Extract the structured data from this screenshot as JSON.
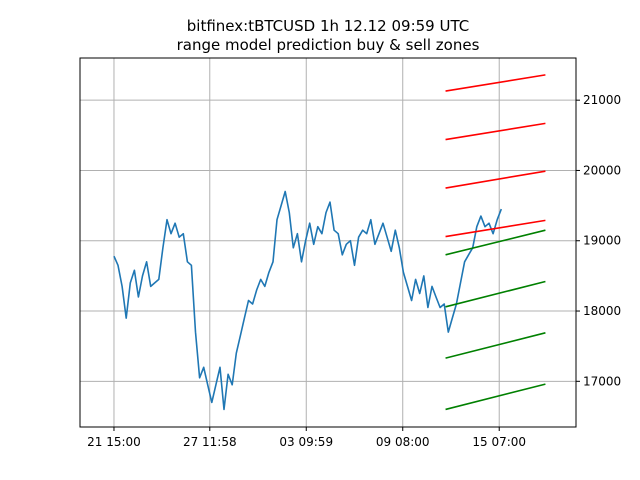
{
  "chart_data": {
    "type": "line",
    "title": [
      "bitfinex:tBTCUSD 1h 12.12 09:59 UTC",
      "range model prediction buy & sell zones"
    ],
    "xlabel": "",
    "ylabel": "",
    "x_unit": "hours",
    "x_ticks": [
      {
        "label": "21 15:00",
        "value": 0
      },
      {
        "label": "27 11:58",
        "value": 141
      },
      {
        "label": "03 09:59",
        "value": 283
      },
      {
        "label": "09 08:00",
        "value": 425
      },
      {
        "label": "15 07:00",
        "value": 567
      }
    ],
    "y_ticks": [
      17000,
      18000,
      19000,
      20000,
      21000
    ],
    "xlim": [
      -50,
      680
    ],
    "ylim": [
      16350,
      21600
    ],
    "y_axis_side": "right",
    "grid": true,
    "colors": {
      "price": "#1f77b4",
      "sell": "#ff0000",
      "buy": "#008000"
    },
    "price_series": {
      "name": "",
      "points": [
        [
          0,
          18780
        ],
        [
          6,
          18650
        ],
        [
          12,
          18350
        ],
        [
          18,
          17900
        ],
        [
          24,
          18400
        ],
        [
          30,
          18580
        ],
        [
          36,
          18200
        ],
        [
          42,
          18500
        ],
        [
          48,
          18700
        ],
        [
          54,
          18350
        ],
        [
          60,
          18400
        ],
        [
          66,
          18450
        ],
        [
          72,
          18900
        ],
        [
          78,
          19300
        ],
        [
          84,
          19100
        ],
        [
          90,
          19250
        ],
        [
          96,
          19050
        ],
        [
          102,
          19100
        ],
        [
          108,
          18700
        ],
        [
          114,
          18650
        ],
        [
          120,
          17700
        ],
        [
          126,
          17050
        ],
        [
          132,
          17200
        ],
        [
          138,
          16950
        ],
        [
          144,
          16700
        ],
        [
          150,
          16950
        ],
        [
          156,
          17200
        ],
        [
          162,
          16600
        ],
        [
          168,
          17100
        ],
        [
          174,
          16950
        ],
        [
          180,
          17400
        ],
        [
          186,
          17650
        ],
        [
          192,
          17900
        ],
        [
          198,
          18150
        ],
        [
          204,
          18100
        ],
        [
          210,
          18300
        ],
        [
          216,
          18450
        ],
        [
          222,
          18350
        ],
        [
          228,
          18550
        ],
        [
          234,
          18700
        ],
        [
          240,
          19300
        ],
        [
          246,
          19500
        ],
        [
          252,
          19700
        ],
        [
          258,
          19400
        ],
        [
          264,
          18900
        ],
        [
          270,
          19100
        ],
        [
          276,
          18700
        ],
        [
          282,
          19000
        ],
        [
          288,
          19250
        ],
        [
          294,
          18950
        ],
        [
          300,
          19200
        ],
        [
          306,
          19100
        ],
        [
          312,
          19400
        ],
        [
          318,
          19550
        ],
        [
          324,
          19150
        ],
        [
          330,
          19100
        ],
        [
          336,
          18800
        ],
        [
          342,
          18950
        ],
        [
          348,
          19000
        ],
        [
          354,
          18650
        ],
        [
          360,
          19050
        ],
        [
          366,
          19150
        ],
        [
          372,
          19100
        ],
        [
          378,
          19300
        ],
        [
          384,
          18950
        ],
        [
          390,
          19100
        ],
        [
          396,
          19250
        ],
        [
          402,
          19050
        ],
        [
          408,
          18850
        ],
        [
          414,
          19150
        ],
        [
          420,
          18900
        ],
        [
          426,
          18550
        ],
        [
          432,
          18350
        ],
        [
          438,
          18150
        ],
        [
          444,
          18450
        ],
        [
          450,
          18250
        ],
        [
          456,
          18500
        ],
        [
          462,
          18050
        ],
        [
          468,
          18350
        ],
        [
          474,
          18200
        ],
        [
          480,
          18050
        ],
        [
          486,
          18100
        ],
        [
          492,
          17700
        ],
        [
          498,
          17900
        ],
        [
          504,
          18100
        ],
        [
          510,
          18400
        ],
        [
          516,
          18700
        ],
        [
          522,
          18800
        ],
        [
          528,
          18900
        ],
        [
          534,
          19200
        ],
        [
          540,
          19350
        ],
        [
          546,
          19200
        ],
        [
          552,
          19250
        ],
        [
          558,
          19100
        ],
        [
          564,
          19300
        ],
        [
          570,
          19450
        ]
      ]
    },
    "zones": [
      {
        "kind": "sell",
        "x": [
          488,
          635
        ],
        "y": [
          21130,
          21360
        ]
      },
      {
        "kind": "sell",
        "x": [
          488,
          635
        ],
        "y": [
          20440,
          20670
        ]
      },
      {
        "kind": "sell",
        "x": [
          488,
          635
        ],
        "y": [
          19750,
          19990
        ]
      },
      {
        "kind": "sell",
        "x": [
          488,
          635
        ],
        "y": [
          19060,
          19290
        ]
      },
      {
        "kind": "buy",
        "x": [
          488,
          635
        ],
        "y": [
          18800,
          19150
        ]
      },
      {
        "kind": "buy",
        "x": [
          488,
          635
        ],
        "y": [
          18060,
          18420
        ]
      },
      {
        "kind": "buy",
        "x": [
          488,
          635
        ],
        "y": [
          17330,
          17690
        ]
      },
      {
        "kind": "buy",
        "x": [
          488,
          635
        ],
        "y": [
          16600,
          16960
        ]
      }
    ]
  }
}
